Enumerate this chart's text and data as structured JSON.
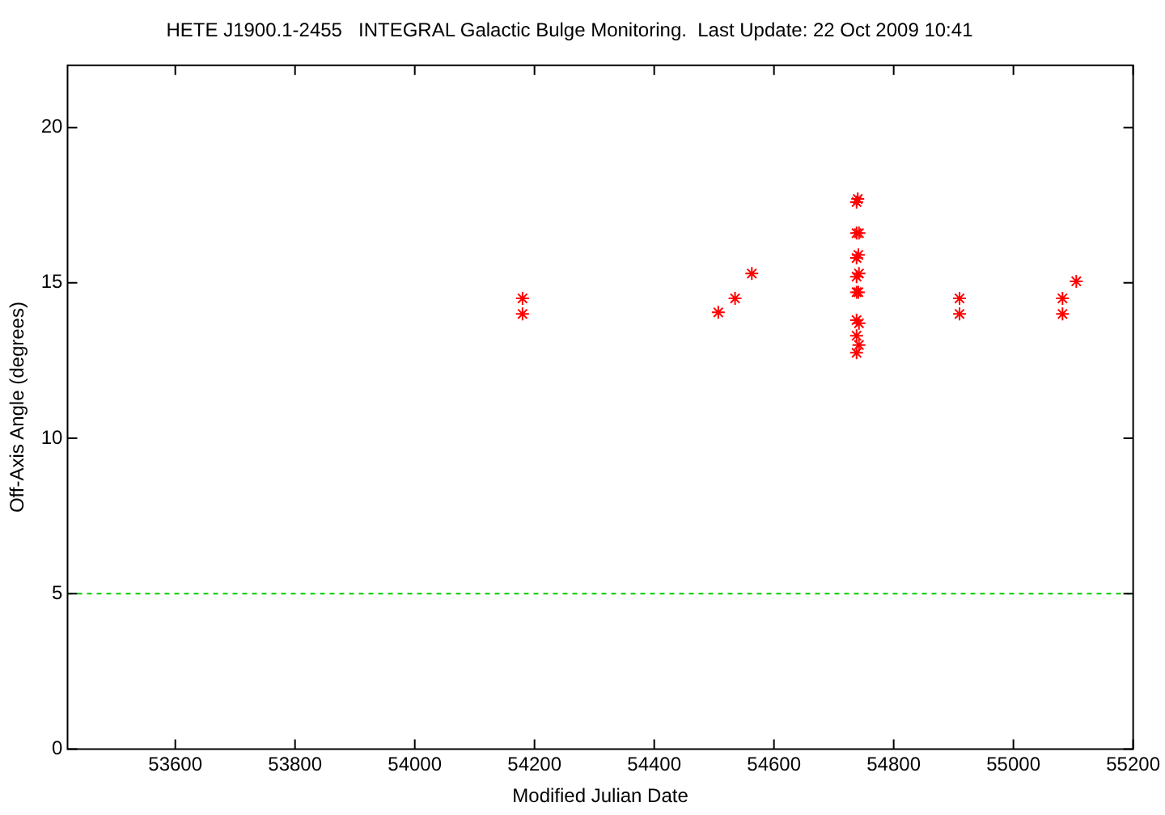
{
  "chart_data": {
    "type": "scatter",
    "title": "HETE J1900.1-2455   INTEGRAL Galactic Bulge Monitoring.  Last Update: 22 Oct 2009 10:41",
    "xlabel": "Modified Julian Date",
    "ylabel": "Off-Axis Angle (degrees)",
    "series": [
      {
        "color": "#ff0000",
        "x": [
          54180,
          54180,
          54507,
          54535,
          54563,
          54738,
          54740,
          54738,
          54742,
          54738,
          54741,
          54738,
          54742,
          54738,
          54741,
          54738,
          54742,
          54742,
          54738,
          54738,
          54910,
          54910,
          55082,
          55082,
          55105
        ],
        "values": [
          14.5,
          14.0,
          14.05,
          14.5,
          15.3,
          17.6,
          17.7,
          16.6,
          16.6,
          15.8,
          15.9,
          15.2,
          15.3,
          14.7,
          14.7,
          13.8,
          13.7,
          13.0,
          12.75,
          13.3,
          14.5,
          14.0,
          14.5,
          14.0,
          15.05
        ]
      }
    ],
    "marker": "cross",
    "xlim": [
      53420,
      55200
    ],
    "xticks": [
      53600,
      53800,
      54000,
      54200,
      54400,
      54600,
      54800,
      55000,
      55200
    ],
    "ylim": [
      0,
      22
    ],
    "yticks": [
      0,
      5,
      10,
      15,
      20
    ],
    "ref_lines": [
      {
        "axis": "y",
        "value": 5,
        "color": "#00cc00",
        "line_style": "dashed"
      }
    ]
  }
}
